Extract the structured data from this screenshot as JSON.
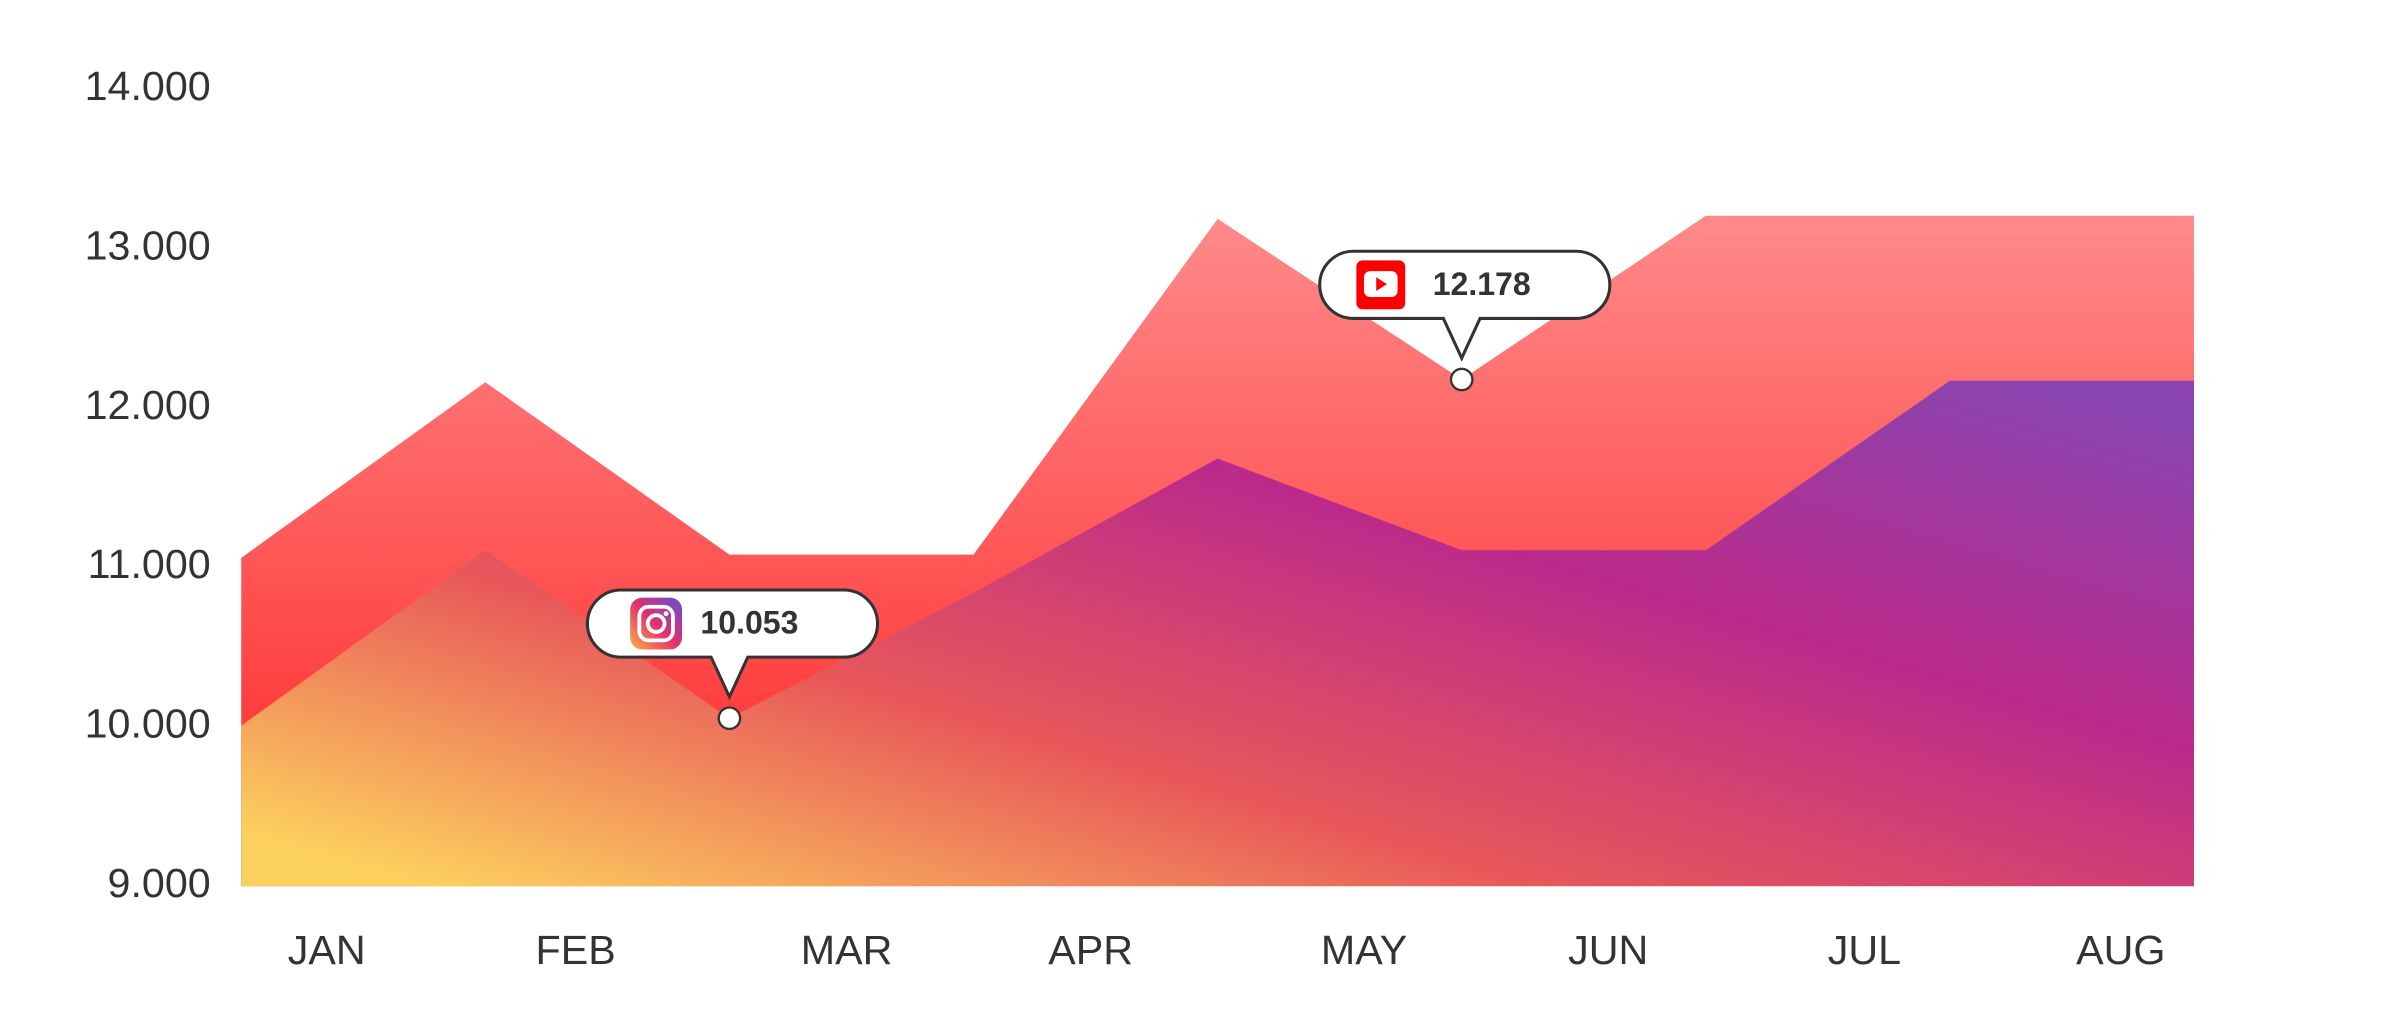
{
  "chart_data": {
    "type": "area",
    "x": [
      0,
      1,
      2,
      3,
      4,
      5,
      6,
      7,
      8
    ],
    "xlim": [
      0,
      8
    ],
    "xticks": [
      {
        "value": 0.35,
        "label": "JAN"
      },
      {
        "value": 1.37,
        "label": "FEB"
      },
      {
        "value": 2.48,
        "label": "MAR"
      },
      {
        "value": 3.48,
        "label": "APR"
      },
      {
        "value": 4.6,
        "label": "MAY"
      },
      {
        "value": 5.6,
        "label": "JUN"
      },
      {
        "value": 6.65,
        "label": "JUL"
      },
      {
        "value": 7.7,
        "label": "AUG"
      }
    ],
    "ylim": [
      9000,
      14000
    ],
    "yticks": [
      {
        "value": 9000,
        "label": "9.000"
      },
      {
        "value": 10000,
        "label": "10.000"
      },
      {
        "value": 11000,
        "label": "11.000"
      },
      {
        "value": 12000,
        "label": "12.000"
      },
      {
        "value": 13000,
        "label": "13.000"
      },
      {
        "value": 14000,
        "label": "14.000"
      }
    ],
    "series": [
      {
        "color": "#ff3a3a",
        "gradient": [
          "#ff8a8a",
          "#ff2424"
        ],
        "values": [
          11059,
          12161,
          11079,
          11079,
          13186,
          12178,
          13205,
          13205,
          13205
        ],
        "value_labels": [
          null,
          null,
          null,
          null,
          null,
          "12.178",
          null,
          null,
          null
        ]
      },
      {
        "color": "#c2298a",
        "gradient": [
          "#fcd05e",
          "#e8585a",
          "#bb2a8a",
          "#8a44b0"
        ],
        "values": [
          10006,
          11107,
          10053,
          10840,
          11682,
          11107,
          11107,
          12170,
          12170
        ],
        "value_labels": [
          null,
          null,
          "10.053",
          null,
          null,
          null,
          null,
          null,
          null
        ]
      }
    ]
  }
}
